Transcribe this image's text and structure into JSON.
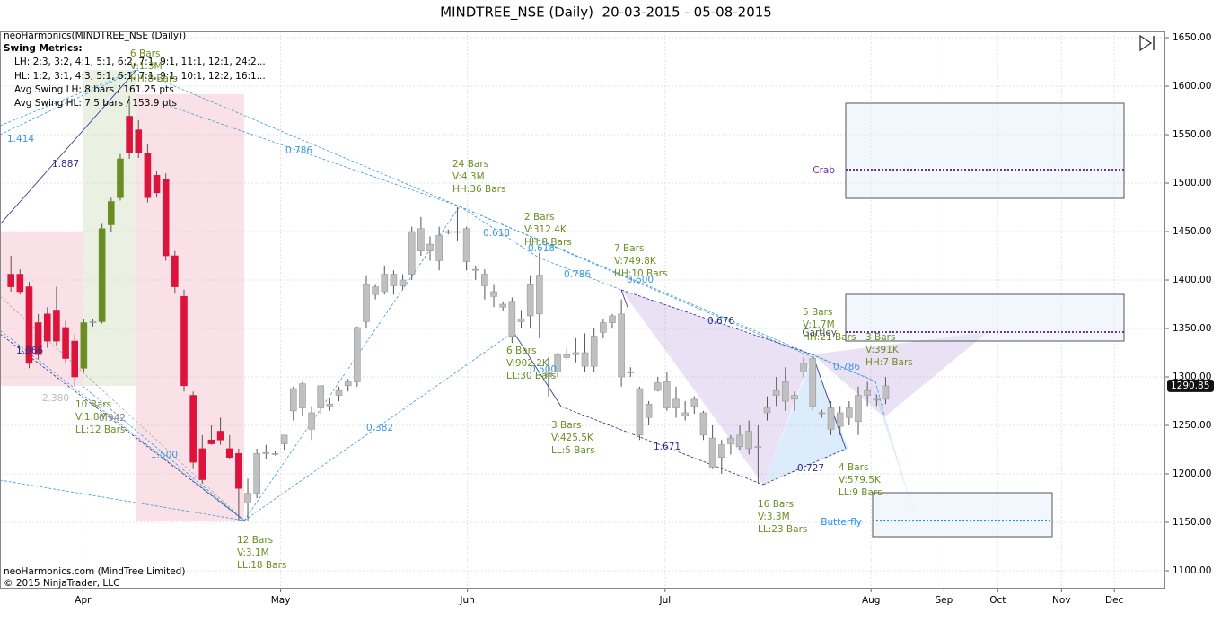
{
  "chart_data": {
    "type": "candlestick",
    "title": "MINDTREE_NSE (Daily)  20-03-2015 - 05-08-2015",
    "indicator": "neoHarmonics(MINDTREE_NSE (Daily))",
    "metrics_title": "Swing Metrics:",
    "metrics": [
      "LH: 2:3, 3:2, 4:1, 5:1, 6:2, 7:1, 9:1, 11:1, 12:1, 24:2...",
      "HL: 1:2, 3:1, 4:3, 5:1, 6:1, 7:1, 9:1, 10:1, 12:2, 16:1...",
      "Avg Swing LH: 8 bars / 161.25 pts",
      "Avg Swing HL: 7.5 bars / 153.9 pts"
    ],
    "footer": [
      "neoHarmonics.com (MindTree Limited)",
      "© 2015 NinjaTrader, LLC"
    ],
    "xlim": [
      -1.2,
      126.7
    ],
    "xticks": [
      {
        "value": 7.9,
        "label": "Apr"
      },
      {
        "value": 29.6,
        "label": "May"
      },
      {
        "value": 50.1,
        "label": "Jun"
      },
      {
        "value": 71.8,
        "label": "Jul"
      },
      {
        "value": 94.4,
        "label": "Aug"
      },
      {
        "value": 102.4,
        "label": "Sep"
      },
      {
        "value": 108.3,
        "label": "Oct"
      },
      {
        "value": 115.3,
        "label": "Nov"
      },
      {
        "value": 121.1,
        "label": "Dec"
      }
    ],
    "ylim": [
      1081.5,
      1656.5
    ],
    "yticks": [
      {
        "value": 1100,
        "label": "1100.00"
      },
      {
        "value": 1150,
        "label": "1150.00"
      },
      {
        "value": 1200,
        "label": "1200.00"
      },
      {
        "value": 1250,
        "label": "1250.00"
      },
      {
        "value": 1300,
        "label": "1300.00"
      },
      {
        "value": 1350,
        "label": "1350.00"
      },
      {
        "value": 1400,
        "label": "1400.00"
      },
      {
        "value": 1450,
        "label": "1450.00"
      },
      {
        "value": 1500,
        "label": "1500.00"
      },
      {
        "value": 1550,
        "label": "1550.00"
      },
      {
        "value": 1600,
        "label": "1600.00"
      },
      {
        "value": 1650,
        "label": "1650.00"
      }
    ],
    "grid": true,
    "open": [
      1406,
      1406,
      1393,
      1356,
      1365,
      1369,
      1351,
      1337,
      1309,
      1356,
      1357,
      1457,
      1485,
      1569,
      1555,
      1531,
      1508,
      1504,
      1425,
      1383,
      1281,
      1226,
      1235,
      1244,
      1226,
      1221,
      1170,
      1180,
      1221,
      1221,
      1231,
      1265,
      1268,
      1263,
      1268,
      1272,
      1281,
      1291,
      1295,
      1357,
      1385,
      1388,
      1394,
      1394,
      1406,
      1430,
      1437,
      1420,
      1450,
      1450,
      1419,
      1411,
      1394,
      1383,
      1375,
      1342,
      1360,
      1363,
      1365,
      1300,
      1305,
      1323,
      1323,
      1311,
      1311,
      1346,
      1356,
      1365,
      1305,
      1288,
      1258,
      1294,
      1295,
      1268,
      1260,
      1270,
      1240,
      1237,
      1217,
      1231,
      1240,
      1244,
      1228,
      1268,
      1286,
      1275,
      1281,
      1314,
      1319,
      1263,
      1268,
      1263,
      1268,
      1281,
      1286,
      1277,
      1277
    ],
    "high": [
      1425,
      1411,
      1398,
      1365,
      1372,
      1393,
      1358,
      1344,
      1360,
      1360,
      1458,
      1485,
      1530,
      1590,
      1565,
      1540,
      1512,
      1510,
      1430,
      1390,
      1285,
      1240,
      1250,
      1258,
      1240,
      1226,
      1195,
      1226,
      1230,
      1224,
      1240,
      1290,
      1295,
      1270,
      1290,
      1278,
      1290,
      1298,
      1352,
      1405,
      1395,
      1415,
      1410,
      1406,
      1455,
      1465,
      1445,
      1455,
      1452,
      1475,
      1455,
      1415,
      1411,
      1395,
      1378,
      1382,
      1369,
      1405,
      1428,
      1320,
      1325,
      1330,
      1340,
      1345,
      1350,
      1360,
      1365,
      1380,
      1310,
      1290,
      1275,
      1300,
      1305,
      1290,
      1275,
      1280,
      1265,
      1250,
      1235,
      1240,
      1250,
      1255,
      1250,
      1280,
      1300,
      1310,
      1285,
      1320,
      1320,
      1266,
      1275,
      1270,
      1275,
      1290,
      1295,
      1282,
      1300
    ],
    "low": [
      1388,
      1385,
      1309,
      1318,
      1330,
      1332,
      1314,
      1290,
      1305,
      1352,
      1355,
      1450,
      1482,
      1525,
      1526,
      1480,
      1485,
      1420,
      1386,
      1285,
      1205,
      1190,
      1230,
      1230,
      1215,
      1152,
      1152,
      1175,
      1215,
      1219,
      1225,
      1255,
      1260,
      1235,
      1262,
      1265,
      1275,
      1285,
      1290,
      1350,
      1380,
      1385,
      1385,
      1390,
      1400,
      1425,
      1420,
      1410,
      1447,
      1440,
      1410,
      1400,
      1380,
      1372,
      1368,
      1335,
      1350,
      1350,
      1340,
      1280,
      1300,
      1318,
      1315,
      1305,
      1305,
      1340,
      1350,
      1290,
      1300,
      1235,
      1250,
      1285,
      1265,
      1258,
      1255,
      1262,
      1235,
      1205,
      1200,
      1220,
      1225,
      1220,
      1190,
      1255,
      1270,
      1265,
      1265,
      1300,
      1265,
      1258,
      1240,
      1240,
      1250,
      1240,
      1270,
      1270,
      1272
    ],
    "close": [
      1393,
      1388,
      1314,
      1323,
      1337,
      1337,
      1319,
      1300,
      1356,
      1357,
      1453,
      1481,
      1525,
      1531,
      1531,
      1485,
      1490,
      1425,
      1393,
      1291,
      1212,
      1194,
      1231,
      1235,
      1217,
      1185,
      1180,
      1221,
      1222,
      1221,
      1240,
      1288,
      1293,
      1246,
      1291,
      1270,
      1286,
      1295,
      1351,
      1395,
      1393,
      1406,
      1406,
      1400,
      1450,
      1453,
      1430,
      1446,
      1449,
      1450,
      1453,
      1411,
      1406,
      1388,
      1372,
      1378,
      1357,
      1395,
      1405,
      1305,
      1323,
      1320,
      1325,
      1325,
      1342,
      1356,
      1363,
      1300,
      1305,
      1240,
      1272,
      1286,
      1268,
      1277,
      1263,
      1277,
      1263,
      1207,
      1230,
      1237,
      1228,
      1226,
      1228,
      1263,
      1281,
      1295,
      1277,
      1305,
      1270,
      1263,
      1246,
      1249,
      1258,
      1254,
      1281,
      1277,
      1290.85
    ],
    "colors": [
      "#dc143c",
      "#dc143c",
      "#dc143c",
      "#dc143c",
      "#dc143c",
      "#dc143c",
      "#dc143c",
      "#dc143c",
      "#6b8e23",
      "#c0c0c0",
      "#6b8e23",
      "#6b8e23",
      "#6b8e23",
      "#dc143c",
      "#dc143c",
      "#dc143c",
      "#dc143c",
      "#dc143c",
      "#dc143c",
      "#dc143c",
      "#dc143c",
      "#dc143c",
      "#dc143c",
      "#dc143c",
      "#dc143c",
      "#dc143c",
      "#c0c0c0",
      "#c0c0c0",
      "#c0c0c0",
      "#c0c0c0",
      "#c0c0c0",
      "#c0c0c0",
      "#c0c0c0",
      "#c0c0c0",
      "#c0c0c0",
      "#c0c0c0",
      "#c0c0c0",
      "#c0c0c0",
      "#c0c0c0",
      "#c0c0c0",
      "#c0c0c0",
      "#c0c0c0",
      "#c0c0c0",
      "#c0c0c0",
      "#c0c0c0",
      "#c0c0c0",
      "#c0c0c0",
      "#c0c0c0",
      "#c0c0c0",
      "#c0c0c0",
      "#c0c0c0",
      "#c0c0c0",
      "#c0c0c0",
      "#c0c0c0",
      "#c0c0c0",
      "#c0c0c0",
      "#c0c0c0",
      "#c0c0c0",
      "#c0c0c0",
      "#c0c0c0",
      "#c0c0c0",
      "#c0c0c0",
      "#c0c0c0",
      "#c0c0c0",
      "#c0c0c0",
      "#c0c0c0",
      "#c0c0c0",
      "#c0c0c0",
      "#c0c0c0",
      "#c0c0c0",
      "#c0c0c0",
      "#c0c0c0",
      "#c0c0c0",
      "#c0c0c0",
      "#c0c0c0",
      "#c0c0c0",
      "#c0c0c0",
      "#c0c0c0",
      "#c0c0c0",
      "#c0c0c0",
      "#c0c0c0",
      "#c0c0c0",
      "#c0c0c0",
      "#c0c0c0",
      "#c0c0c0",
      "#c0c0c0",
      "#c0c0c0",
      "#c0c0c0",
      "#c0c0c0",
      "#c0c0c0",
      "#c0c0c0",
      "#c0c0c0",
      "#c0c0c0",
      "#c0c0c0",
      "#c0c0c0",
      "#c0c0c0",
      "#c0c0c0"
    ],
    "swings": [
      [
        "6 Bars",
        "V:1.3M",
        "HH:8 Bars"
      ],
      [
        "24 Bars",
        "V:4.3M",
        "HH:36 Bars"
      ],
      [
        "2 Bars",
        "V:312.4K",
        "HH:8 Bars"
      ],
      [
        "7 Bars",
        "V:749.8K",
        "HH:10 Bars"
      ],
      [
        "5 Bars",
        "V:1.7M",
        "HH:21 Bars"
      ],
      [
        "3 Bars",
        "V:391K",
        "HH:7 Bars"
      ],
      [
        "10 Bars",
        "V:1.8M",
        "LL:12 Bars"
      ],
      [
        "6 Bars",
        "V:902.2K",
        "LL:30 Bars"
      ],
      [
        "3 Bars",
        "V:425.5K",
        "LL:5 Bars"
      ],
      [
        "16 Bars",
        "V:3.3M",
        "LL:23 Bars"
      ],
      [
        "4 Bars",
        "V:579.5K",
        "LL:9 Bars"
      ],
      [
        "12 Bars",
        "V:3.1M",
        "LL:18 Bars"
      ]
    ],
    "ratios": [
      "1.414",
      "1.887",
      "0.786",
      "0.382",
      "0.618",
      "0.618",
      "0.786",
      "0.600",
      "0.676",
      "1.671",
      "0.727",
      "0.786",
      "1.866",
      "2.380",
      "0.942",
      "1.500",
      "0.500"
    ],
    "patterns": [
      "Crab",
      "Gartley",
      "Butterfly"
    ]
  }
}
